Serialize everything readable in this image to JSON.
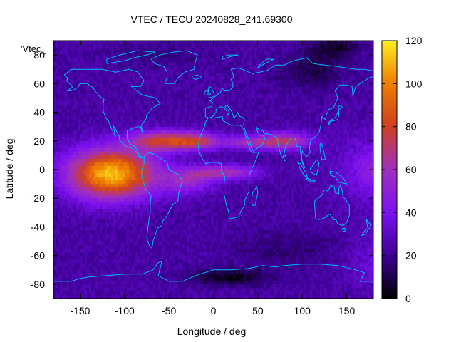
{
  "chart_data": {
    "type": "heatmap",
    "title": "VTEC / TECU 20240828_241.69300",
    "xlabel": "Longitude / deg",
    "ylabel": "Latitude / deg",
    "series_key": "'Vtec_",
    "xlim": [
      -180,
      180
    ],
    "ylim": [
      -90,
      90
    ],
    "x_ticks": [
      -150,
      -100,
      -50,
      0,
      50,
      100,
      150
    ],
    "x_tick_labels": [
      "-150",
      "-100",
      "-50",
      "0",
      "50",
      "100",
      "150"
    ],
    "y_ticks": [
      -80,
      -60,
      -40,
      -20,
      0,
      20,
      40,
      60,
      80
    ],
    "y_tick_labels": [
      "-80",
      "-60",
      "-40",
      "-20",
      "0",
      "20",
      "40",
      "60",
      "80"
    ],
    "colorbar": {
      "range": [
        0,
        120
      ],
      "ticks": [
        0,
        20,
        40,
        60,
        80,
        100,
        120
      ],
      "tick_labels": [
        "0",
        "20",
        "40",
        "60",
        "80",
        "100",
        "120"
      ],
      "colormap": [
        "#000000",
        "#3a0090",
        "#7c10f0",
        "#a030c0",
        "#d04020",
        "#f08000",
        "#fff020"
      ]
    },
    "coastline_color": "#00b8ff",
    "features": [
      {
        "name": "primary-maximum",
        "lon": -125,
        "lat": -5,
        "value": 115
      },
      {
        "name": "northern-arc",
        "lon": -40,
        "lat": 20,
        "value": 80
      },
      {
        "name": "arabia-india-band",
        "lon": 90,
        "lat": 20,
        "value": 70
      },
      {
        "name": "african-band",
        "lon": 20,
        "lat": -2,
        "value": 68
      },
      {
        "name": "polar-minimum-north",
        "lon": 135,
        "lat": 85,
        "value": 5
      },
      {
        "name": "antarctic-minimum",
        "lon": 20,
        "lat": -72,
        "value": 4
      }
    ]
  }
}
